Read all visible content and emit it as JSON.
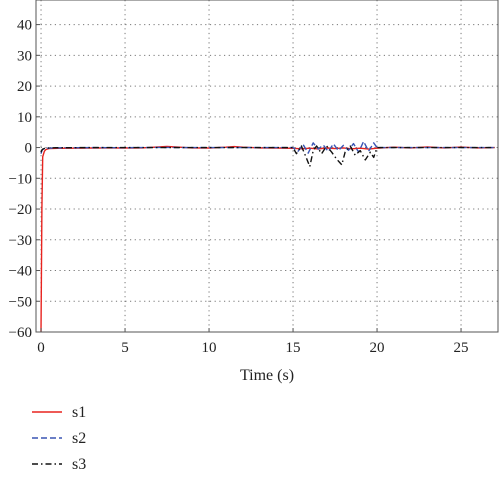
{
  "chart_data": {
    "type": "line",
    "title": "",
    "xlabel": "Time (s)",
    "ylabel": "",
    "xlim": [
      -0.3,
      27.2
    ],
    "ylim": [
      -60,
      48
    ],
    "xticks": [
      0,
      5,
      10,
      15,
      20,
      25
    ],
    "yticks": [
      -60,
      -50,
      -40,
      -30,
      -20,
      -10,
      0,
      10,
      20,
      30,
      40
    ],
    "grid": true,
    "legend_position": "bottom-left",
    "series": [
      {
        "name": "s1",
        "color": "#e8231f",
        "style": "solid",
        "x": [
          0,
          0.05,
          0.1,
          0.2,
          0.3,
          0.5,
          1,
          2,
          3,
          4,
          5,
          6,
          7,
          7.5,
          8,
          9,
          10,
          11,
          11.5,
          12,
          13,
          14,
          15,
          15.5,
          16,
          16.5,
          17,
          17.5,
          18,
          18.5,
          19,
          19.5,
          20,
          21,
          22,
          23,
          24,
          25,
          26,
          27
        ],
        "y": [
          -60,
          -20,
          -3,
          -1.2,
          -0.6,
          -0.3,
          -0.25,
          -0.2,
          -0.15,
          -0.1,
          -0.15,
          -0.1,
          0.2,
          0.35,
          0.2,
          -0.1,
          -0.15,
          0.1,
          0.3,
          0.1,
          -0.1,
          -0.15,
          -0.25,
          -0.4,
          -0.2,
          -0.45,
          -0.15,
          -0.35,
          -0.1,
          -0.4,
          -0.2,
          -0.5,
          -0.2,
          0.1,
          -0.1,
          0.2,
          -0.1,
          0.15,
          -0.1,
          0
        ]
      },
      {
        "name": "s2",
        "color": "#3a55b4",
        "style": "dashed",
        "x": [
          0,
          0.05,
          0.1,
          0.2,
          0.4,
          1,
          3,
          5,
          7,
          9,
          11,
          13,
          15,
          15.3,
          15.6,
          15.9,
          16.2,
          16.5,
          16.8,
          17.1,
          17.4,
          17.7,
          18.0,
          18.3,
          18.6,
          18.9,
          19.2,
          19.5,
          19.8,
          20,
          21,
          23,
          25,
          27
        ],
        "y": [
          -2,
          -1,
          -0.6,
          -0.4,
          -0.2,
          -0.1,
          0,
          -0.05,
          0.05,
          0,
          0,
          0,
          0,
          -1.2,
          1.0,
          -1.8,
          1.5,
          -0.5,
          0.8,
          -1.3,
          1.2,
          -1.0,
          0.7,
          -0.9,
          1.3,
          -1.5,
          2.0,
          -1.2,
          1.5,
          0,
          0,
          0,
          0,
          0
        ]
      },
      {
        "name": "s3",
        "color": "#111111",
        "style": "dashdot",
        "x": [
          0,
          0.05,
          0.1,
          0.2,
          0.4,
          1,
          3,
          5,
          7,
          9,
          11,
          13,
          15,
          15.2,
          15.5,
          15.8,
          16.0,
          16.2,
          16.4,
          16.7,
          17.0,
          17.3,
          17.6,
          17.9,
          18.1,
          18.4,
          18.7,
          19.0,
          19.3,
          19.6,
          19.8,
          20,
          21,
          23,
          25,
          27
        ],
        "y": [
          -1.5,
          -0.8,
          -0.5,
          -0.3,
          -0.15,
          -0.05,
          0,
          0,
          0,
          0,
          0,
          0,
          0,
          -2.0,
          0.5,
          -3.5,
          -6.2,
          -1.0,
          0.5,
          -2.0,
          0.5,
          -1.5,
          -3.8,
          -5.6,
          -1.5,
          0.5,
          -2.5,
          -1.0,
          -4.0,
          -1.5,
          -3.2,
          0,
          0,
          0,
          0,
          0
        ]
      }
    ]
  }
}
